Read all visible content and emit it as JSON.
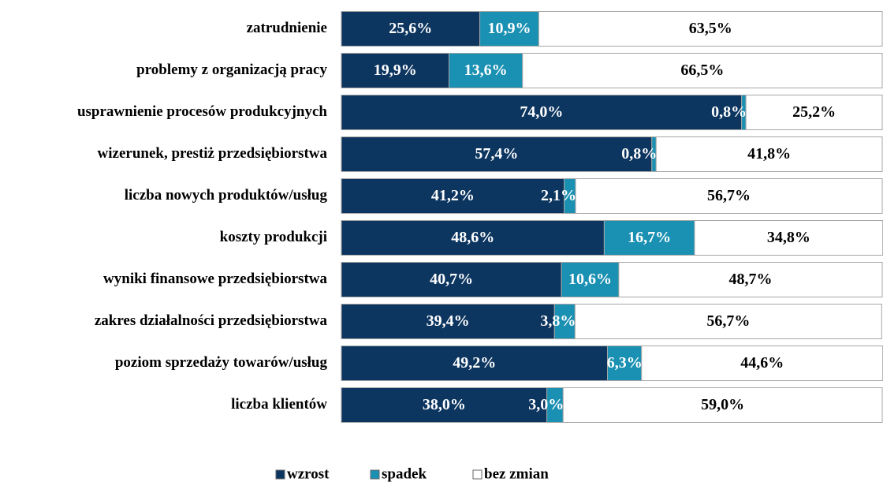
{
  "chart_data": {
    "type": "stacked-barh",
    "categories": [
      "zatrudnienie",
      "problemy z organizacją pracy",
      "usprawnienie procesów produkcyjnych",
      "wizerunek, prestiż przedsiębiorstwa",
      "liczba nowych produktów/usług",
      "koszty produkcji",
      "wyniki finansowe przedsiębiorstwa",
      "zakres działalności przedsiębiorstwa",
      "poziom sprzedaży towarów/usług",
      "liczba klientów"
    ],
    "xlim": [
      0,
      100
    ],
    "series": [
      {
        "name": "wzrost",
        "color": "#0c355f",
        "label_color": "#ffffff",
        "values": [
          25.6,
          19.9,
          74.0,
          57.4,
          41.2,
          48.6,
          40.7,
          39.4,
          49.2,
          38.0
        ],
        "value_labels": [
          "25,6%",
          "19,9%",
          "74,0%",
          "57,4%",
          "41,2%",
          "48,6%",
          "40,7%",
          "39,4%",
          "49,2%",
          "38,0%"
        ]
      },
      {
        "name": "spadek",
        "color": "#1a90b2",
        "label_color": "#ffffff",
        "values": [
          10.9,
          13.6,
          0.8,
          0.8,
          2.1,
          16.7,
          10.6,
          3.8,
          6.3,
          3.0
        ],
        "value_labels": [
          "10,9%",
          "13,6%",
          "0,8%",
          "0,8%",
          "2,1%",
          "16,7%",
          "10,6%",
          "3,8%",
          "6,3%",
          "3,0%"
        ]
      },
      {
        "name": "bez zmian",
        "color": "#ffffff",
        "label_color": "#000000",
        "values": [
          63.5,
          66.5,
          25.2,
          41.8,
          56.7,
          34.8,
          48.7,
          56.7,
          44.6,
          59.0
        ],
        "value_labels": [
          "63,5%",
          "66,5%",
          "25,2%",
          "41,8%",
          "56,7%",
          "34,8%",
          "48,7%",
          "56,7%",
          "44,6%",
          "59,0%"
        ]
      }
    ],
    "legend": "bottom"
  }
}
